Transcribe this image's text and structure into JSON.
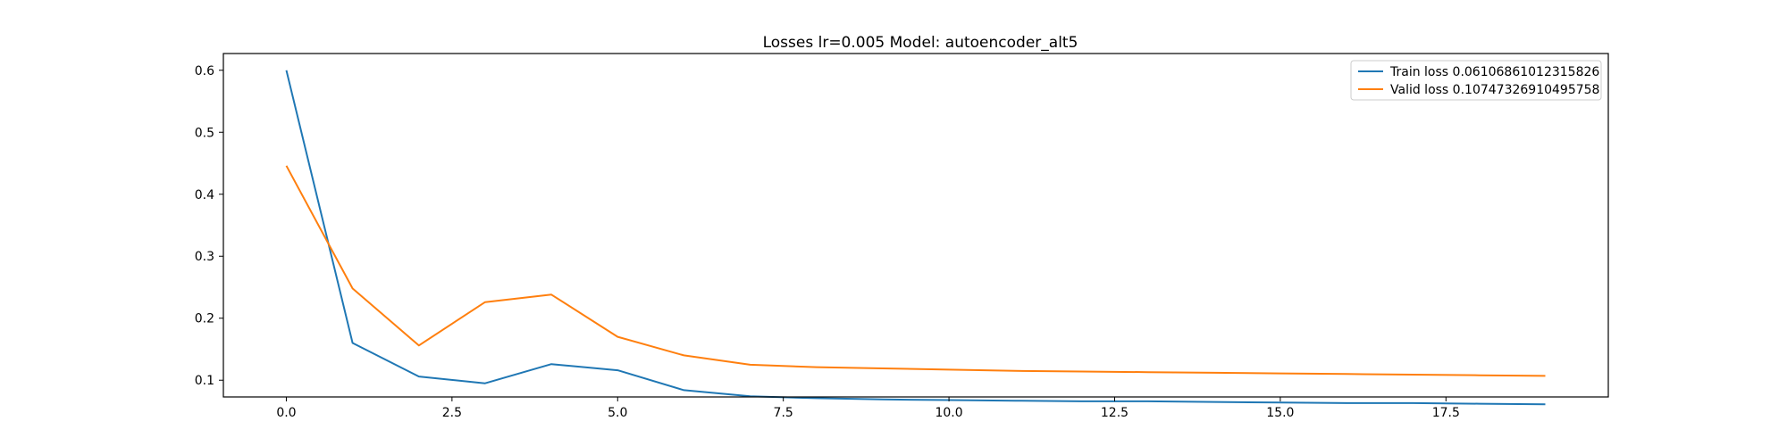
{
  "chart_data": {
    "type": "line",
    "title": "Losses lr=0.005 Model: autoencoder_alt5",
    "xlabel": "",
    "ylabel": "",
    "xlim": [
      -0.95,
      19.95
    ],
    "ylim": [
      0.073,
      0.627
    ],
    "x_ticks": [
      0.0,
      2.5,
      5.0,
      7.5,
      10.0,
      12.5,
      15.0,
      17.5
    ],
    "x_tick_labels": [
      "0.0",
      "2.5",
      "5.0",
      "7.5",
      "10.0",
      "12.5",
      "15.0",
      "17.5"
    ],
    "y_ticks": [
      0.1,
      0.2,
      0.3,
      0.4,
      0.5,
      0.6
    ],
    "y_tick_labels": [
      "0.1",
      "0.2",
      "0.3",
      "0.4",
      "0.5",
      "0.6"
    ],
    "grid": false,
    "legend": "top-right",
    "x": [
      0,
      1,
      2,
      3,
      4,
      5,
      6,
      7,
      8,
      9,
      10,
      11,
      12,
      13,
      14,
      15,
      16,
      17,
      18,
      19
    ],
    "series": [
      {
        "name": "Train loss 0.06106861012315826",
        "color": "#1f77b4",
        "values": [
          0.6,
          0.16,
          0.106,
          0.095,
          0.126,
          0.116,
          0.084,
          0.074,
          0.071,
          0.069,
          0.068,
          0.067,
          0.066,
          0.066,
          0.065,
          0.064,
          0.063,
          0.063,
          0.062,
          0.061
        ]
      },
      {
        "name": "Valid loss 0.10747326910495758",
        "color": "#ff7f0e",
        "values": [
          0.446,
          0.248,
          0.156,
          0.226,
          0.238,
          0.17,
          0.14,
          0.125,
          0.121,
          0.119,
          0.117,
          0.115,
          0.114,
          0.113,
          0.112,
          0.111,
          0.11,
          0.109,
          0.108,
          0.107
        ]
      }
    ]
  }
}
